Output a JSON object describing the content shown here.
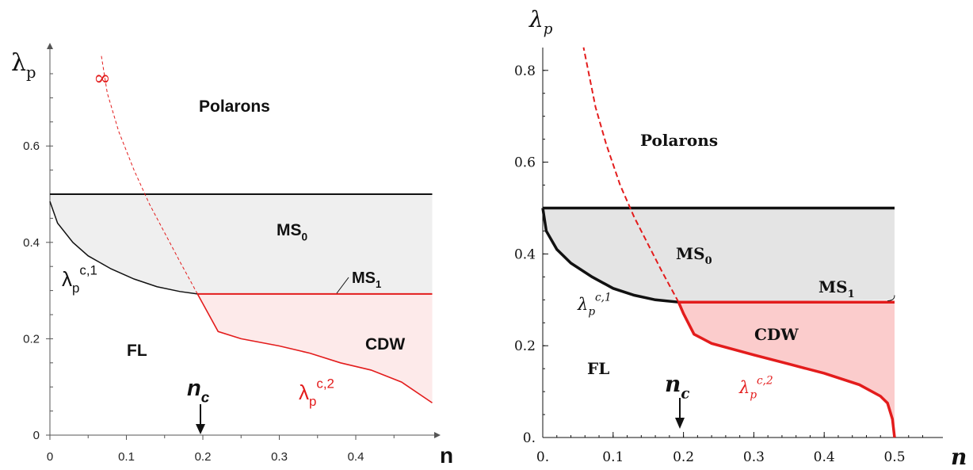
{
  "colors": {
    "black": "#111111",
    "red": "#e31c1c",
    "grey_region": "#ececec",
    "pink_region": "#fde6e6",
    "pink_region_right": "#fbcccc",
    "grey_region_right": "#e4e4e4"
  },
  "chart_data": [
    {
      "type": "line",
      "panel": "left",
      "ylabel": "λp",
      "xlabel": "n",
      "xlim": [
        0,
        0.5
      ],
      "ylim": [
        0,
        0.8
      ],
      "xticks": [
        "0",
        "0.1",
        "0.2",
        "0.3",
        "0.4"
      ],
      "yticks": [
        "0",
        "0.2",
        "0.4",
        "0.6"
      ],
      "regions": {
        "polarons": "Polarons",
        "ms0": "MS",
        "ms0_sub": "0",
        "ms1": "MS",
        "ms1_sub": "1",
        "cdw": "CDW",
        "fl": "FL"
      },
      "annotations": {
        "infinity": "∞",
        "nc": "n",
        "nc_sub": "c",
        "lc1": "λ",
        "lc1_sub": "p",
        "lc1_sup": "c,1",
        "lc2": "λ",
        "lc2_sub": "p",
        "lc2_sup": "c,2"
      },
      "series": [
        {
          "name": "upper boundary",
          "x": [
            0,
            0.5
          ],
          "y": [
            0.5,
            0.5
          ]
        },
        {
          "name": "λp c,1",
          "x": [
            0,
            0.01,
            0.03,
            0.05,
            0.08,
            0.11,
            0.14,
            0.17,
            0.193
          ],
          "y": [
            0.485,
            0.44,
            0.4,
            0.372,
            0.345,
            0.324,
            0.308,
            0.298,
            0.293
          ]
        },
        {
          "name": "MS1 boundary",
          "x": [
            0.193,
            0.5
          ],
          "y": [
            0.293,
            0.293
          ]
        },
        {
          "name": "λp c,2",
          "x": [
            0.193,
            0.22,
            0.25,
            0.3,
            0.34,
            0.38,
            0.42,
            0.46,
            0.5
          ],
          "y": [
            0.293,
            0.215,
            0.2,
            0.185,
            0.17,
            0.15,
            0.135,
            0.11,
            0.067
          ]
        },
        {
          "name": "dashed extension",
          "x": [
            0.193,
            0.17,
            0.15,
            0.13,
            0.11,
            0.09,
            0.075,
            0.067
          ],
          "y": [
            0.293,
            0.36,
            0.42,
            0.48,
            0.55,
            0.63,
            0.71,
            0.79
          ]
        }
      ]
    },
    {
      "type": "line",
      "panel": "right",
      "ylabel": "λp",
      "xlabel": "n",
      "xlim": [
        0,
        0.55
      ],
      "ylim": [
        0,
        0.85
      ],
      "xticks": [
        "0.",
        "0.1",
        "0.2",
        "0.3",
        "0.4",
        "0.5"
      ],
      "yticks": [
        "0.",
        "0.2",
        "0.4",
        "0.6",
        "0.8"
      ],
      "regions": {
        "polarons": "Polarons",
        "ms0": "MS",
        "ms0_sub": "0",
        "ms1": "MS",
        "ms1_sub": "1",
        "cdw": "CDW",
        "fl": "FL"
      },
      "annotations": {
        "nc": "n",
        "nc_sub": "c",
        "lc1": "λ",
        "lc1_sub": "p",
        "lc1_sup": "c,1",
        "lc2": "λ",
        "lc2_sub": "p",
        "lc2_sup": "c,2"
      },
      "series": [
        {
          "name": "upper boundary",
          "x": [
            0,
            0.5
          ],
          "y": [
            0.5,
            0.5
          ]
        },
        {
          "name": "λp c,1",
          "x": [
            0,
            0.005,
            0.02,
            0.04,
            0.07,
            0.1,
            0.13,
            0.16,
            0.193
          ],
          "y": [
            0.5,
            0.45,
            0.41,
            0.38,
            0.35,
            0.325,
            0.31,
            0.3,
            0.295
          ]
        },
        {
          "name": "MS1 boundary",
          "x": [
            0.193,
            0.5
          ],
          "y": [
            0.295,
            0.295
          ]
        },
        {
          "name": "λp c,2",
          "x": [
            0.193,
            0.2,
            0.215,
            0.24,
            0.3,
            0.35,
            0.4,
            0.45,
            0.48,
            0.49,
            0.497,
            0.5
          ],
          "y": [
            0.295,
            0.27,
            0.225,
            0.205,
            0.18,
            0.16,
            0.14,
            0.115,
            0.09,
            0.075,
            0.04,
            0.0
          ]
        },
        {
          "name": "dashed extension",
          "x": [
            0.193,
            0.17,
            0.15,
            0.13,
            0.11,
            0.09,
            0.075,
            0.058
          ],
          "y": [
            0.295,
            0.36,
            0.42,
            0.48,
            0.55,
            0.64,
            0.72,
            0.85
          ]
        }
      ]
    }
  ]
}
